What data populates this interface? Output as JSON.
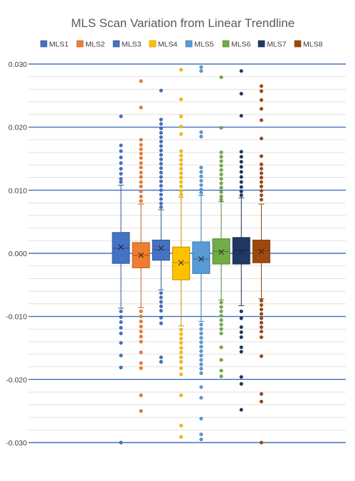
{
  "chart_data": {
    "type": "box",
    "title": "MLS Scan Variation from Linear Trendline",
    "xlabel": "",
    "ylabel": "",
    "ylim": [
      -0.03,
      0.03
    ],
    "major_ticks": [
      "0.030",
      "0.020",
      "0.010",
      "0.000",
      "-0.010",
      "-0.020",
      "-0.030"
    ],
    "major_tick_values": [
      0.03,
      0.02,
      0.01,
      0.0,
      -0.01,
      -0.02,
      -0.03
    ],
    "minor_gridline_step": 0.002,
    "grid": true,
    "legend_position": "top",
    "series": [
      {
        "name": "MLS1",
        "color": "#4472C4",
        "edge": "#2F5597",
        "whisker_low": -0.0087,
        "q1": -0.0016,
        "median": 0.0008,
        "q3": 0.0033,
        "whisker_high": 0.0108,
        "mean": 0.001,
        "outliers": [
          0.0217,
          0.0171,
          0.0162,
          0.0152,
          0.0143,
          0.0134,
          0.0126,
          0.0118,
          0.0113,
          -0.0092,
          -0.0101,
          -0.0109,
          -0.0118,
          -0.0127,
          -0.0142,
          -0.0162,
          -0.0181,
          -0.03
        ]
      },
      {
        "name": "MLS2",
        "color": "#ED7D31",
        "edge": "#C55A11",
        "whisker_low": -0.0086,
        "q1": -0.0023,
        "median": -0.0003,
        "q3": 0.0017,
        "whisker_high": 0.0078,
        "mean": -0.0003,
        "outliers": [
          0.0273,
          0.0231,
          0.018,
          0.0172,
          0.0165,
          0.0158,
          0.0151,
          0.0143,
          0.0136,
          0.0128,
          0.0121,
          0.0113,
          0.0106,
          0.0098,
          0.009,
          0.0083,
          -0.0092,
          -0.01,
          -0.0108,
          -0.0116,
          -0.0124,
          -0.0132,
          -0.014,
          -0.0157,
          -0.0174,
          -0.0182,
          -0.0225,
          -0.025
        ]
      },
      {
        "name": "MLS3",
        "color": "#4472C4",
        "edge": "#2F5597",
        "whisker_low": -0.0058,
        "q1": -0.0011,
        "median": 0.0006,
        "q3": 0.0021,
        "whisker_high": 0.0069,
        "mean": 0.0008,
        "outliers": [
          0.0258,
          0.0212,
          0.0205,
          0.0198,
          0.0191,
          0.0184,
          0.0177,
          0.017,
          0.0163,
          0.0156,
          0.0149,
          0.0142,
          0.0135,
          0.0128,
          0.0121,
          0.0114,
          0.0107,
          0.01,
          0.0093,
          0.0086,
          0.0079,
          0.0073,
          -0.0063,
          -0.007,
          -0.0077,
          -0.0084,
          -0.0091,
          -0.0102,
          -0.0111,
          -0.0165,
          -0.0172
        ]
      },
      {
        "name": "MLS4",
        "color": "#FFC000",
        "edge": "#BF9000",
        "whisker_low": -0.0115,
        "q1": -0.0042,
        "median": -0.0015,
        "q3": 0.001,
        "whisker_high": 0.0089,
        "mean": -0.0015,
        "outliers": [
          0.0291,
          0.0244,
          0.0217,
          0.0201,
          0.0189,
          0.0162,
          0.0155,
          0.0148,
          0.0141,
          0.0134,
          0.0127,
          0.012,
          0.0113,
          0.0106,
          0.0099,
          0.0093,
          -0.0121,
          -0.0128,
          -0.0135,
          -0.0142,
          -0.015,
          -0.0157,
          -0.0165,
          -0.0172,
          -0.0182,
          -0.0192,
          -0.0225,
          -0.0273,
          -0.0291
        ]
      },
      {
        "name": "MLS5",
        "color": "#5B9BD5",
        "edge": "#2E75B6",
        "whisker_low": -0.0108,
        "q1": -0.0032,
        "median": -0.0009,
        "q3": 0.0018,
        "whisker_high": 0.0092,
        "mean": -0.0009,
        "outliers": [
          0.0295,
          0.0289,
          0.0192,
          0.0185,
          0.0136,
          0.0129,
          0.0122,
          0.0115,
          0.0108,
          0.0101,
          0.0096,
          -0.0113,
          -0.012,
          -0.0127,
          -0.0134,
          -0.0141,
          -0.0148,
          -0.0155,
          -0.0162,
          -0.0169,
          -0.0176,
          -0.0183,
          -0.019,
          -0.0212,
          -0.0229,
          -0.0262,
          -0.0287,
          -0.0295
        ]
      },
      {
        "name": "MLS6",
        "color": "#70AD47",
        "edge": "#548235",
        "whisker_low": -0.0074,
        "q1": -0.0017,
        "median": 0.0003,
        "q3": 0.0023,
        "whisker_high": 0.0082,
        "mean": 0.0002,
        "outliers": [
          0.0279,
          0.0199,
          0.016,
          0.0153,
          0.0146,
          0.0139,
          0.0132,
          0.0125,
          0.0118,
          0.0111,
          0.0104,
          0.0097,
          0.009,
          0.0085,
          -0.0078,
          -0.0085,
          -0.0092,
          -0.0099,
          -0.0106,
          -0.0113,
          -0.012,
          -0.0127,
          -0.0149,
          -0.0169,
          -0.0186,
          -0.0195
        ]
      },
      {
        "name": "MLS7",
        "color": "#1F3864",
        "edge": "#172A4C",
        "whisker_low": -0.0083,
        "q1": -0.0017,
        "median": 0.0005,
        "q3": 0.0025,
        "whisker_high": 0.0088,
        "mean": 0.0004,
        "outliers": [
          0.0289,
          0.0253,
          0.0218,
          0.0161,
          0.0153,
          0.0145,
          0.0137,
          0.0129,
          0.0121,
          0.0113,
          0.0105,
          0.0098,
          0.0092,
          -0.0092,
          -0.0103,
          -0.0117,
          -0.0125,
          -0.0133,
          -0.0149,
          -0.0156,
          -0.0196,
          -0.0207,
          -0.0248
        ]
      },
      {
        "name": "MLS8",
        "color": "#9E480E",
        "edge": "#843C0C",
        "whisker_low": -0.0072,
        "q1": -0.0015,
        "median": 0.0004,
        "q3": 0.0021,
        "whisker_high": 0.0078,
        "mean": 0.0003,
        "outliers": [
          0.0265,
          0.0257,
          0.0243,
          0.0229,
          0.0211,
          0.0182,
          0.0154,
          0.0141,
          0.0134,
          0.0127,
          0.012,
          0.0113,
          0.0106,
          0.0099,
          0.0092,
          0.0085,
          -0.0075,
          -0.0082,
          -0.0089,
          -0.0096,
          -0.0103,
          -0.011,
          -0.0117,
          -0.0124,
          -0.0133,
          -0.0163,
          -0.0223,
          -0.0235,
          -0.03
        ]
      }
    ]
  }
}
